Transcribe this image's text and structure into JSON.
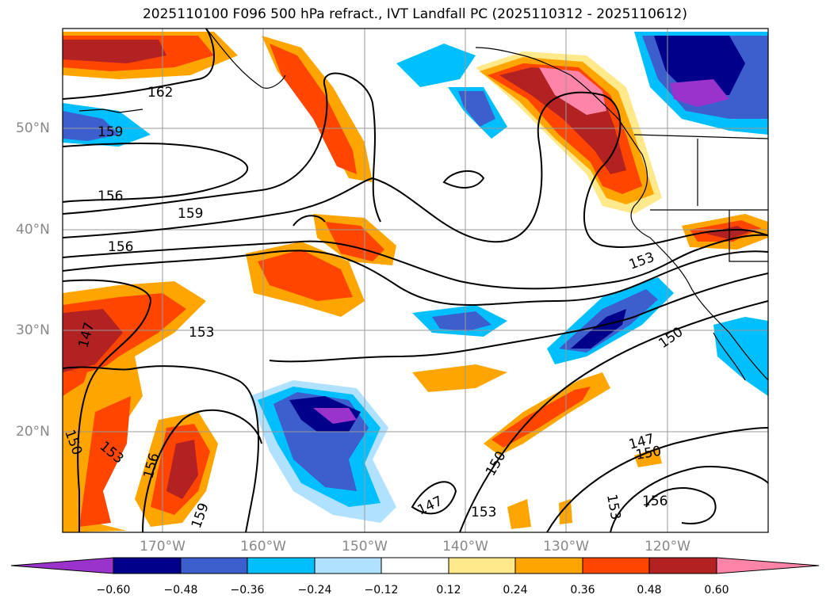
{
  "title": "2025110100 F096 500 hPa refract., IVT Landfall PC (2025110312 - 2025110612)",
  "longitude_labels": [
    "170°W",
    "160°W",
    "150°W",
    "140°W",
    "130°W",
    "120°W"
  ],
  "latitude_labels": [
    "50°N",
    "40°N",
    "30°N",
    "20°N"
  ],
  "contour_labels": [
    "162",
    "159",
    "156",
    "159",
    "156",
    "153",
    "147",
    "150",
    "153",
    "156",
    "159",
    "147",
    "153",
    "150",
    "153",
    "147",
    "150",
    "156",
    "153"
  ],
  "colorbar": {
    "ticks": [
      "−0.60",
      "−0.48",
      "−0.36",
      "−0.24",
      "−0.12",
      "0.12",
      "0.24",
      "0.36",
      "0.48",
      "0.60"
    ],
    "colors": [
      "#9a33cc",
      "#00008b",
      "#3d5fcd",
      "#00bfff",
      "#b0e2ff",
      "#ffffff",
      "#ffe98a",
      "#ffa500",
      "#ff4500",
      "#b22222",
      "#ff85a8"
    ]
  },
  "colors": {
    "coast": "#000000",
    "contour": "#000000",
    "grid": "#999999"
  }
}
